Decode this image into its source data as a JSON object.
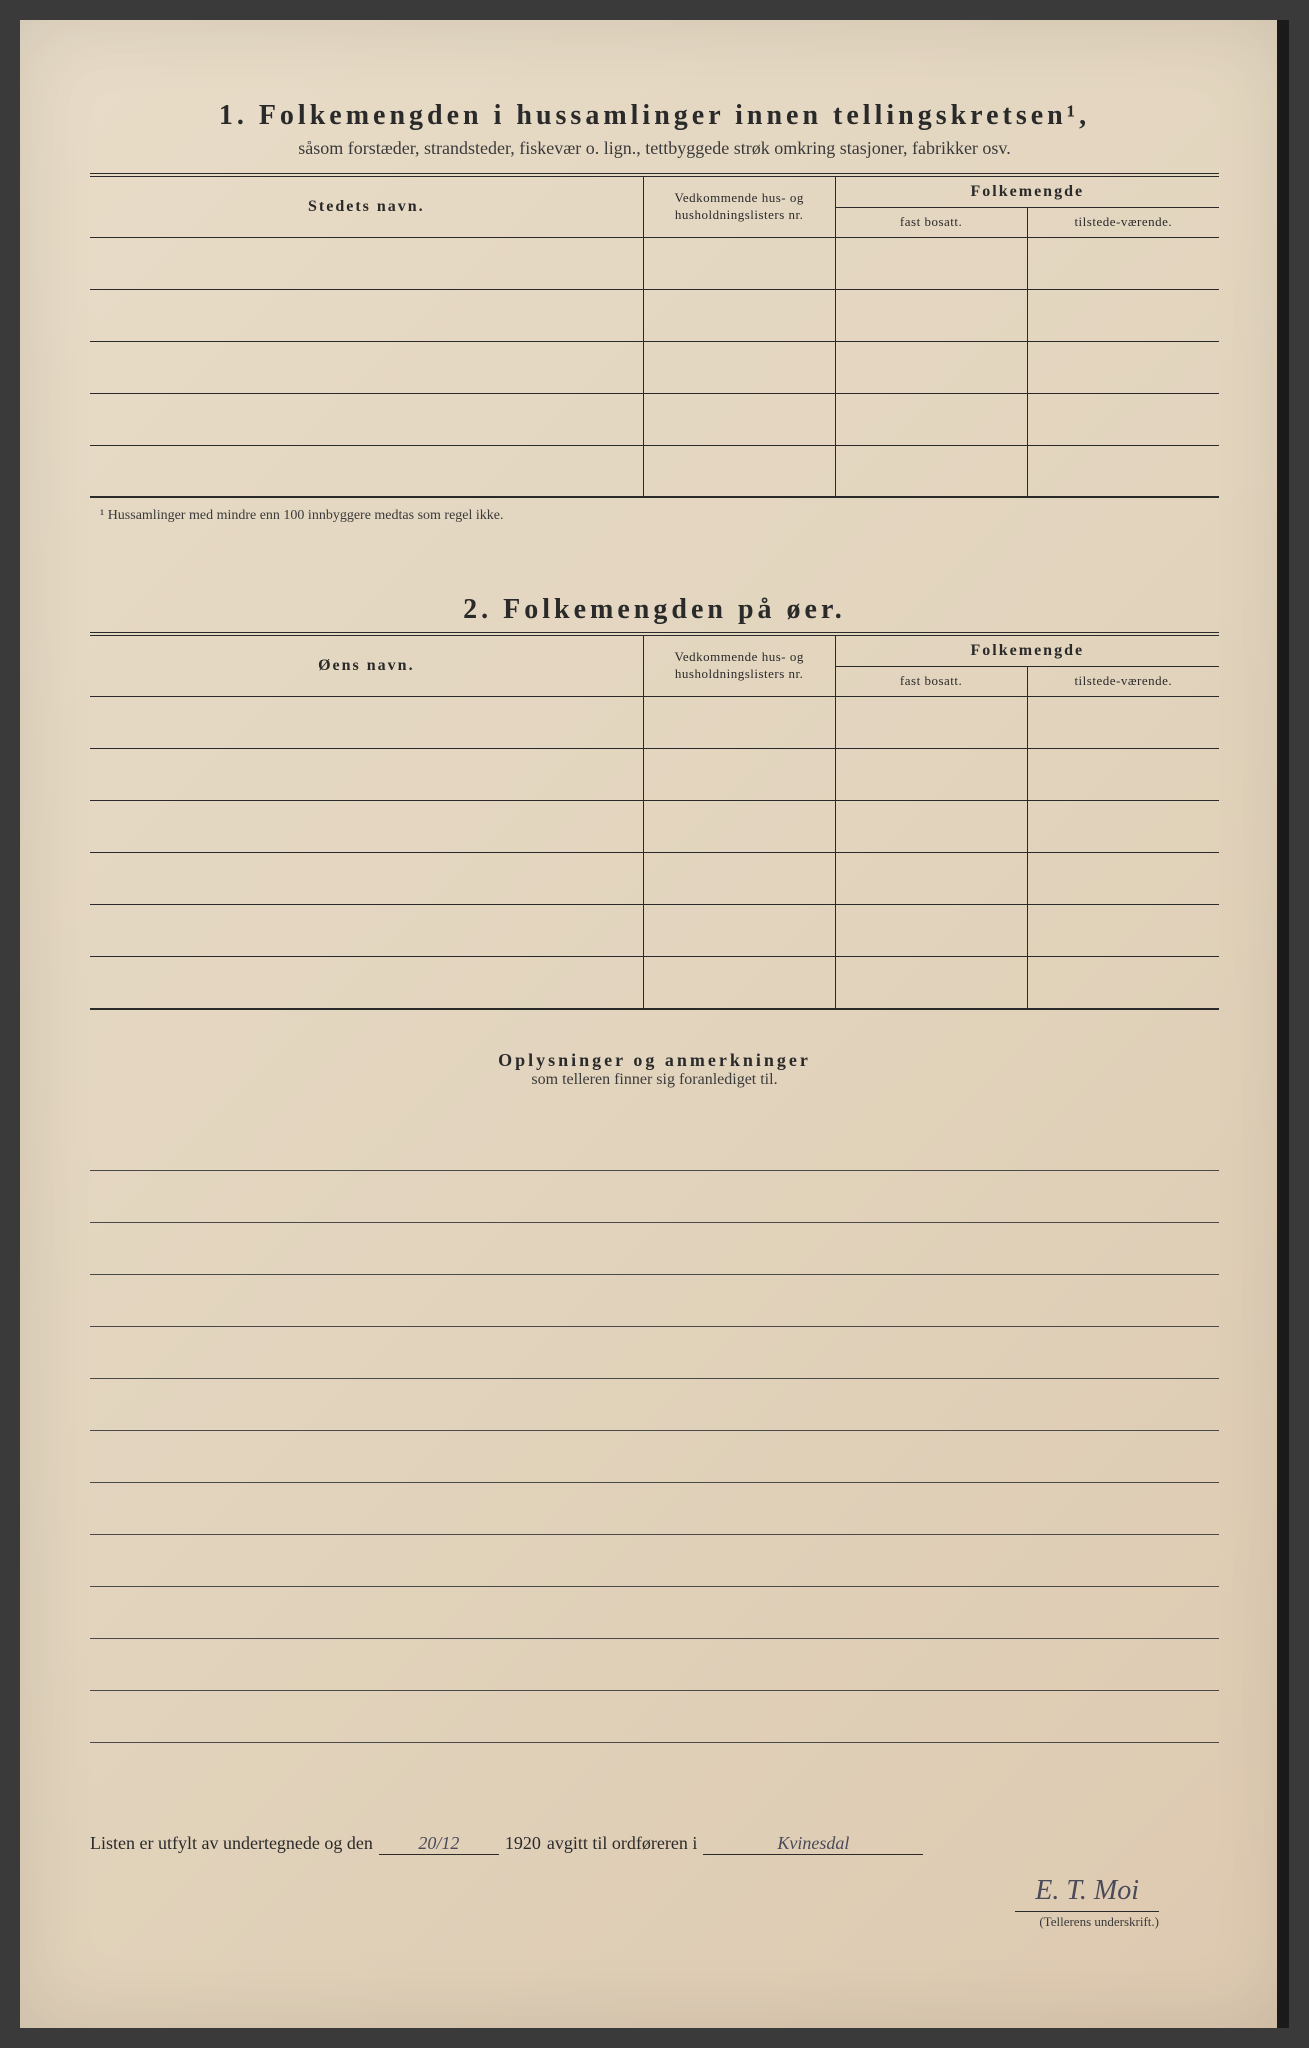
{
  "section1": {
    "number": "1.",
    "title": "Folkemengden i hussamlinger innen tellingskretsen¹,",
    "subtitle": "såsom forstæder, strandsteder, fiskevær o. lign., tettbyggede strøk omkring stasjoner, fabrikker osv.",
    "headers": {
      "name": "Stedets navn.",
      "nr": "Vedkommende hus- og husholdningslisters nr.",
      "folkemengde": "Folkemengde",
      "fast": "fast bosatt.",
      "tilstede": "tilstede-værende."
    },
    "rows": [
      "",
      "",
      "",
      "",
      ""
    ],
    "footnote": "¹  Hussamlinger med mindre enn 100 innbyggere medtas som regel ikke."
  },
  "section2": {
    "number": "2.",
    "title": "Folkemengden på øer.",
    "headers": {
      "name": "Øens navn.",
      "nr": "Vedkommende hus- og husholdningslisters nr.",
      "folkemengde": "Folkemengde",
      "fast": "fast bosatt.",
      "tilstede": "tilstede-værende."
    },
    "rows": [
      "",
      "",
      "",
      "",
      "",
      ""
    ]
  },
  "remarks": {
    "title": "Oplysninger og anmerkninger",
    "subtitle": "som telleren finner sig foranlediget til.",
    "lines": 12
  },
  "signature": {
    "prefix": "Listen er utfylt av undertegnede og den",
    "date": "20/12",
    "year": "1920",
    "mid": "avgitt til ordføreren i",
    "place": "Kvinesdal",
    "teller_name": "E. T. Moi",
    "teller_label": "(Tellerens underskrift.)"
  },
  "colors": {
    "paper": "#e2d4bd",
    "ink": "#2a2a2a",
    "handwriting": "#4a4a5a"
  }
}
